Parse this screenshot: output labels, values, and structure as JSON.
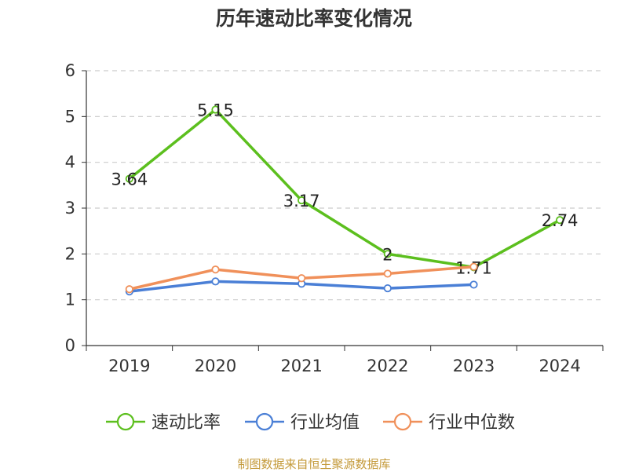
{
  "source_note": "制图数据来自恒生聚源数据库",
  "chart_data": {
    "type": "line",
    "title": "历年速动比率变化情况",
    "xlabel": "",
    "ylabel": "",
    "categories": [
      "2019",
      "2020",
      "2021",
      "2022",
      "2023",
      "2024"
    ],
    "ylim": [
      0,
      6
    ],
    "yticks": [
      0,
      1,
      2,
      3,
      4,
      5,
      6
    ],
    "grid": true,
    "legend_position": "bottom",
    "series": [
      {
        "name": "速动比率",
        "color": "#5cbf1e",
        "values": [
          3.64,
          5.15,
          3.17,
          2,
          1.71,
          2.74
        ],
        "show_labels": true,
        "labels": [
          "3.64",
          "5.15",
          "3.17",
          "2",
          "1.71",
          "2.74"
        ]
      },
      {
        "name": "行业均值",
        "color": "#4a7fd6",
        "values": [
          1.18,
          1.4,
          1.35,
          1.25,
          1.33,
          null
        ],
        "show_labels": false
      },
      {
        "name": "行业中位数",
        "color": "#f0905a",
        "values": [
          1.23,
          1.66,
          1.47,
          1.57,
          1.72,
          null
        ],
        "show_labels": false
      }
    ]
  }
}
